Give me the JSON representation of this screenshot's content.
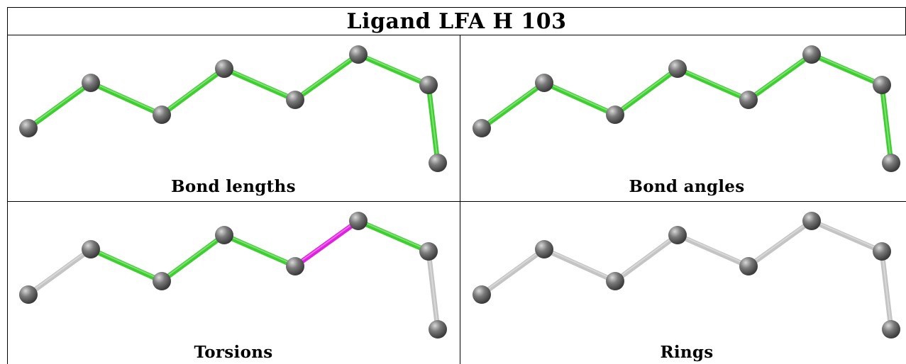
{
  "title": "Ligand LFA H 103",
  "colors": {
    "ok": "#3ccf2e",
    "outlier": "#e020e0",
    "neutral": "#c4c4c4",
    "atom": "#7a7a7a"
  },
  "panels": [
    {
      "label": "Bond lengths",
      "bonds": [
        "ok",
        "ok",
        "ok",
        "ok",
        "ok",
        "ok",
        "ok"
      ]
    },
    {
      "label": "Bond angles",
      "bonds": [
        "ok",
        "ok",
        "ok",
        "ok",
        "ok",
        "ok",
        "ok"
      ]
    },
    {
      "label": "Torsions",
      "bonds": [
        "neutral",
        "ok",
        "ok",
        "ok",
        "outlier",
        "ok",
        "neutral"
      ]
    },
    {
      "label": "Rings",
      "bonds": [
        "neutral",
        "neutral",
        "neutral",
        "neutral",
        "neutral",
        "neutral",
        "neutral"
      ]
    }
  ]
}
